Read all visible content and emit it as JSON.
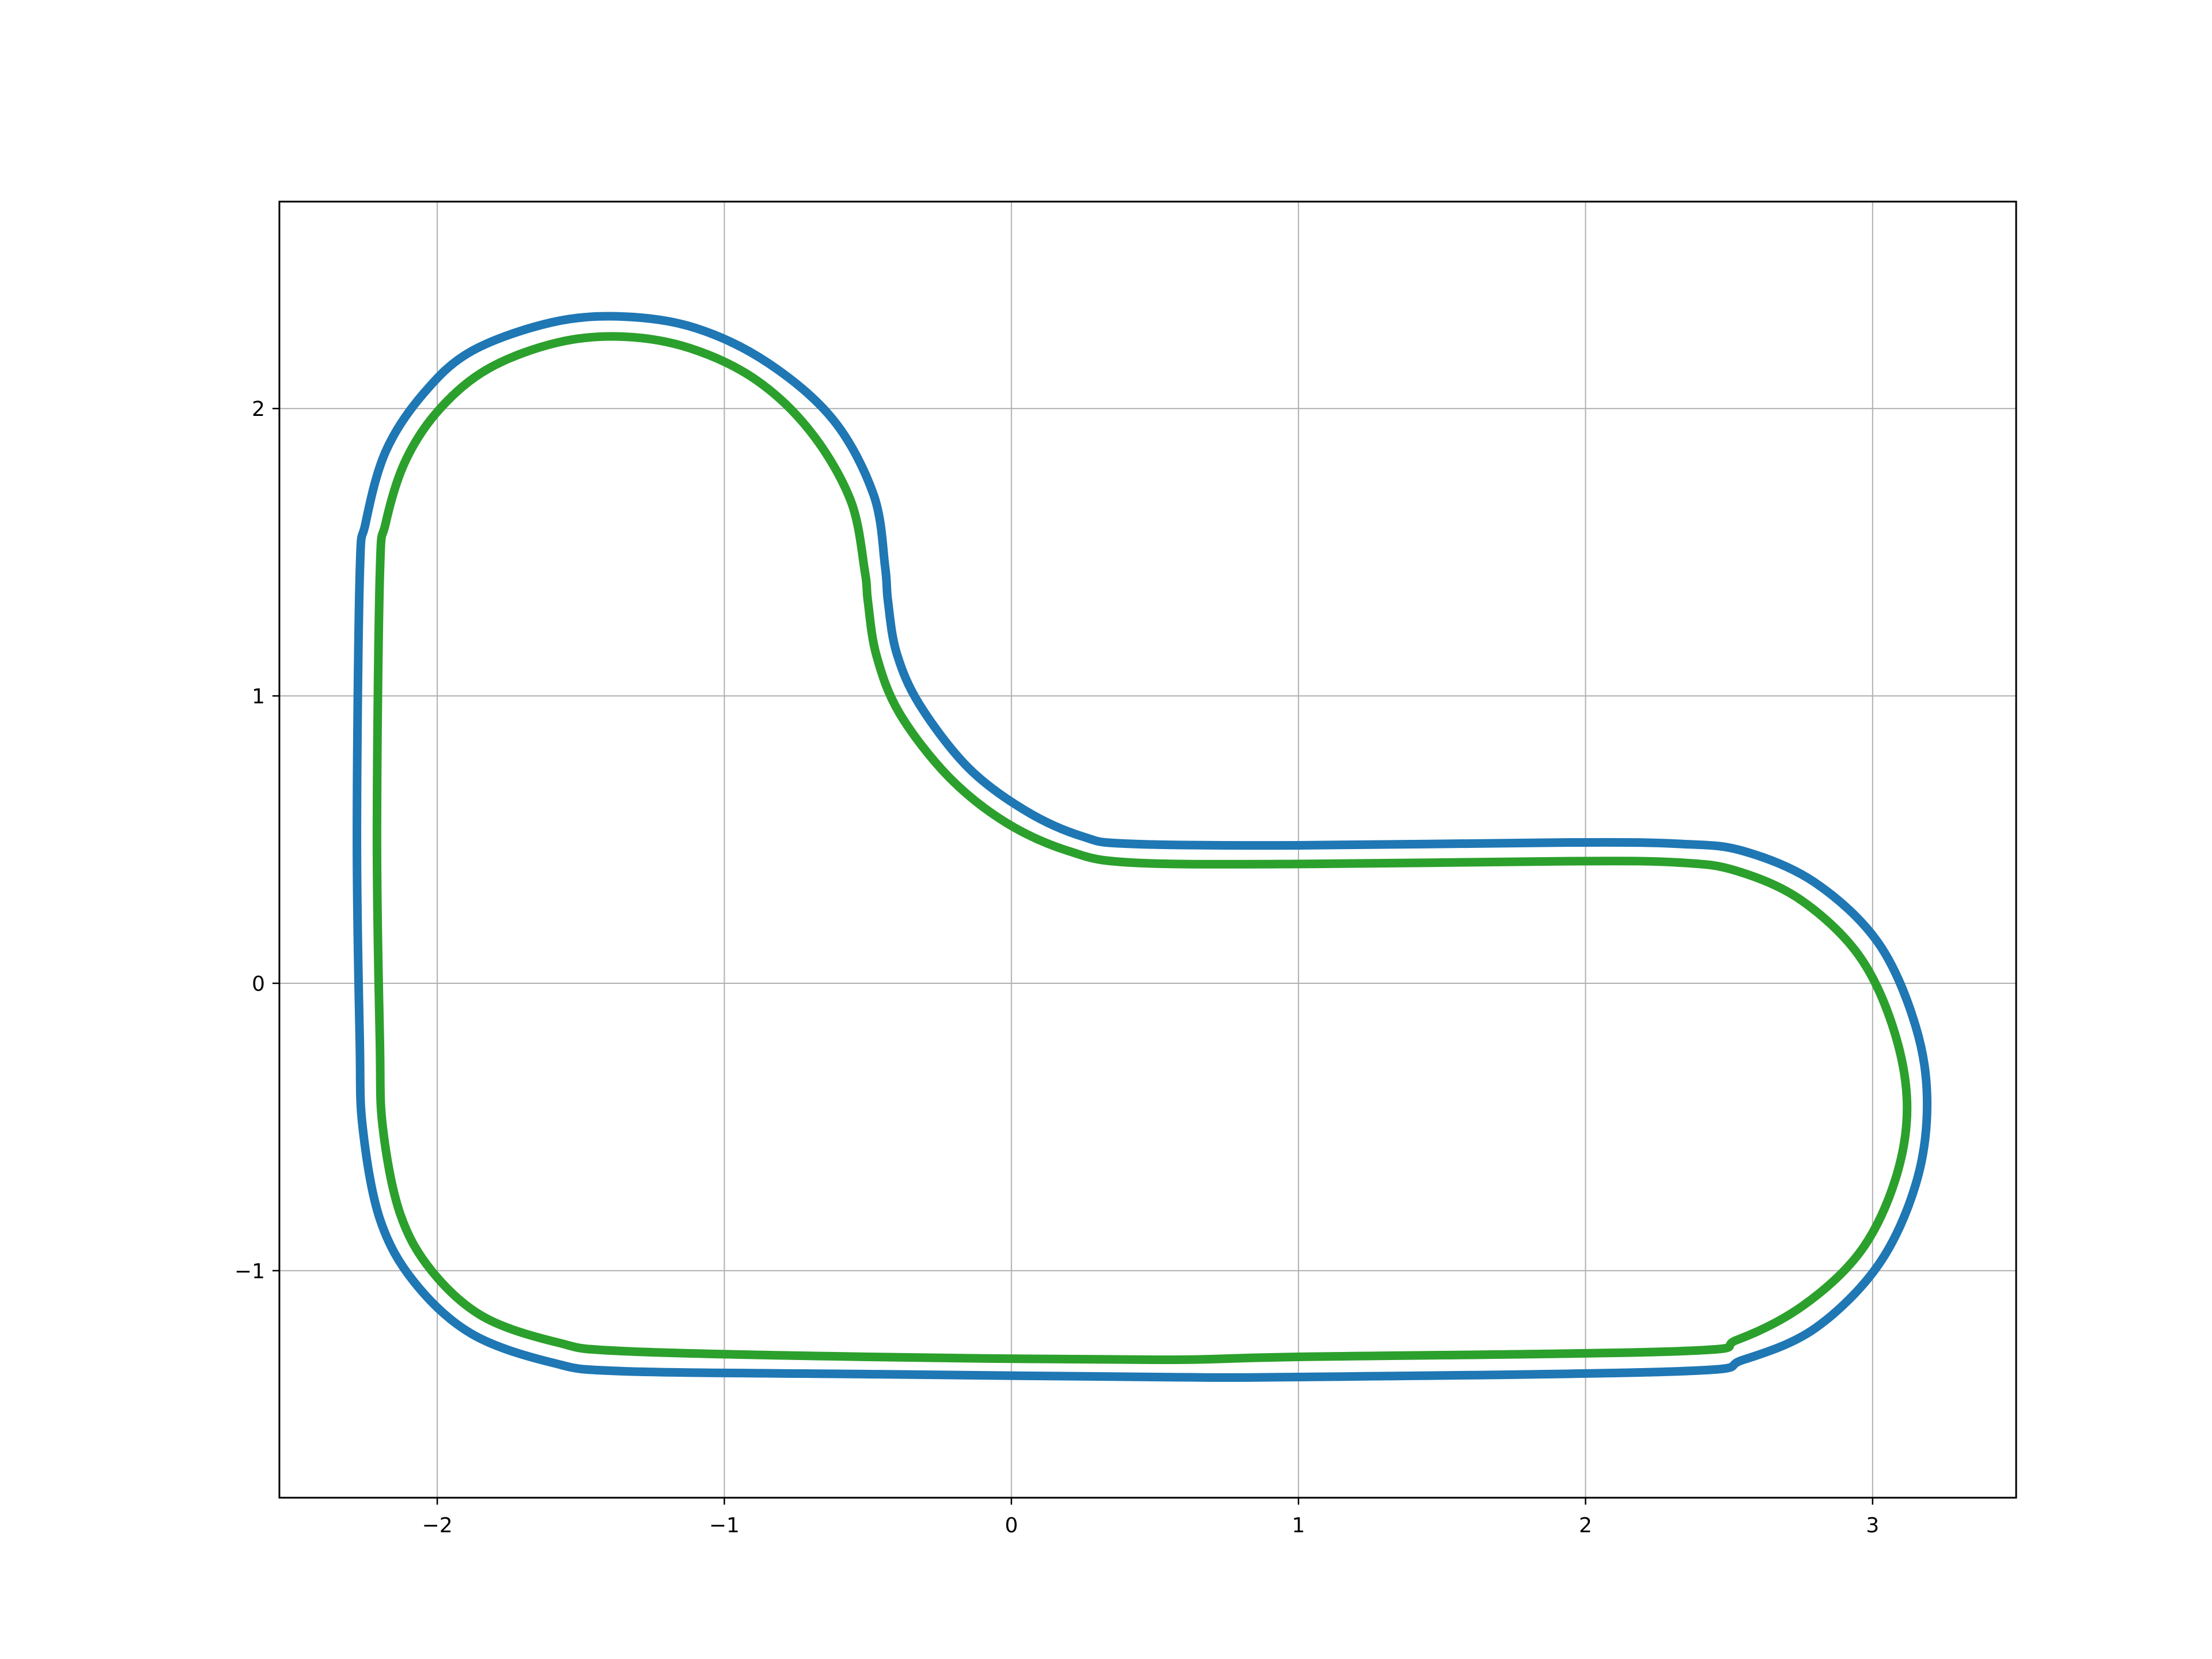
{
  "chart_data": {
    "type": "line",
    "title": "",
    "xlabel": "",
    "ylabel": "",
    "xlim": [
      -2.55,
      3.5
    ],
    "ylim": [
      -1.79,
      2.72
    ],
    "xticks": [
      -2,
      -1,
      0,
      1,
      2,
      3
    ],
    "yticks": [
      -1,
      0,
      1,
      2
    ],
    "xtick_labels": [
      "−2",
      "−1",
      "0",
      "1",
      "2",
      "3"
    ],
    "ytick_labels": [
      "−1",
      "0",
      "1",
      "2"
    ],
    "grid": true,
    "series": [
      {
        "color": "#1f77b4",
        "points": [
          [
            -2.27,
            1.42
          ],
          [
            -2.25,
            1.6
          ],
          [
            -2.18,
            1.85
          ],
          [
            -2.05,
            2.05
          ],
          [
            -1.88,
            2.2
          ],
          [
            -1.6,
            2.3
          ],
          [
            -1.35,
            2.32
          ],
          [
            -1.1,
            2.28
          ],
          [
            -0.85,
            2.16
          ],
          [
            -0.62,
            1.96
          ],
          [
            -0.48,
            1.7
          ],
          [
            -0.44,
            1.45
          ],
          [
            -0.43,
            1.33
          ],
          [
            -0.4,
            1.15
          ],
          [
            -0.32,
            0.97
          ],
          [
            -0.15,
            0.75
          ],
          [
            0.05,
            0.6
          ],
          [
            0.25,
            0.51
          ],
          [
            0.42,
            0.485
          ],
          [
            1.0,
            0.48
          ],
          [
            1.95,
            0.49
          ],
          [
            2.33,
            0.485
          ],
          [
            2.55,
            0.46
          ],
          [
            2.8,
            0.35
          ],
          [
            3.02,
            0.14
          ],
          [
            3.15,
            -0.15
          ],
          [
            3.19,
            -0.42
          ],
          [
            3.15,
            -0.7
          ],
          [
            3.02,
            -0.98
          ],
          [
            2.8,
            -1.2
          ],
          [
            2.55,
            -1.31
          ],
          [
            2.33,
            -1.35
          ],
          [
            1.0,
            -1.37
          ],
          [
            0.5,
            -1.37
          ],
          [
            -0.5,
            -1.36
          ],
          [
            -1.35,
            -1.35
          ],
          [
            -1.6,
            -1.32
          ],
          [
            -1.88,
            -1.22
          ],
          [
            -2.08,
            -1.04
          ],
          [
            -2.2,
            -0.82
          ],
          [
            -2.26,
            -0.5
          ],
          [
            -2.27,
            -0.2
          ],
          [
            -2.28,
            0.5
          ],
          [
            -2.27,
            1.42
          ]
        ]
      },
      {
        "color": "#2ca02c",
        "points": [
          [
            -2.2,
            1.42
          ],
          [
            -2.18,
            1.6
          ],
          [
            -2.11,
            1.82
          ],
          [
            -1.99,
            2.0
          ],
          [
            -1.82,
            2.14
          ],
          [
            -1.58,
            2.23
          ],
          [
            -1.35,
            2.25
          ],
          [
            -1.12,
            2.21
          ],
          [
            -0.89,
            2.1
          ],
          [
            -0.7,
            1.92
          ],
          [
            -0.56,
            1.68
          ],
          [
            -0.51,
            1.43
          ],
          [
            -0.5,
            1.33
          ],
          [
            -0.47,
            1.14
          ],
          [
            -0.39,
            0.94
          ],
          [
            -0.22,
            0.72
          ],
          [
            -0.02,
            0.56
          ],
          [
            0.2,
            0.46
          ],
          [
            0.42,
            0.42
          ],
          [
            1.0,
            0.415
          ],
          [
            1.95,
            0.425
          ],
          [
            2.33,
            0.42
          ],
          [
            2.53,
            0.39
          ],
          [
            2.75,
            0.29
          ],
          [
            2.95,
            0.1
          ],
          [
            3.07,
            -0.15
          ],
          [
            3.12,
            -0.42
          ],
          [
            3.08,
            -0.68
          ],
          [
            2.96,
            -0.93
          ],
          [
            2.76,
            -1.12
          ],
          [
            2.53,
            -1.24
          ],
          [
            2.33,
            -1.28
          ],
          [
            1.0,
            -1.3
          ],
          [
            0.5,
            -1.31
          ],
          [
            -0.5,
            -1.3
          ],
          [
            -1.35,
            -1.28
          ],
          [
            -1.58,
            -1.25
          ],
          [
            -1.84,
            -1.16
          ],
          [
            -2.02,
            -1.0
          ],
          [
            -2.13,
            -0.8
          ],
          [
            -2.19,
            -0.5
          ],
          [
            -2.2,
            -0.2
          ],
          [
            -2.21,
            0.5
          ],
          [
            -2.2,
            1.42
          ]
        ]
      }
    ]
  }
}
